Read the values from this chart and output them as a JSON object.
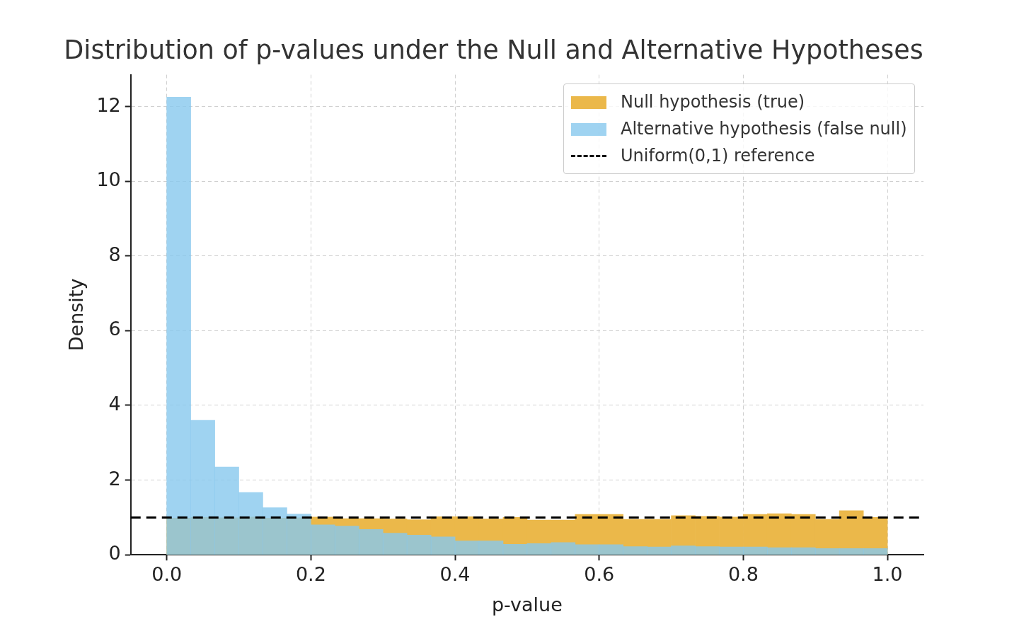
{
  "chart_data": {
    "type": "histogram",
    "title": "Distribution of p-values under the Null and Alternative Hypotheses",
    "xlabel": "p-value",
    "ylabel": "Density",
    "bins": [
      0,
      0.0333,
      0.0667,
      0.1,
      0.1333,
      0.1667,
      0.2,
      0.2333,
      0.2667,
      0.3,
      0.3333,
      0.3667,
      0.4,
      0.4333,
      0.4667,
      0.5,
      0.5333,
      0.5667,
      0.6,
      0.6333,
      0.6667,
      0.7,
      0.7333,
      0.7667,
      0.8,
      0.8333,
      0.8667,
      0.9,
      0.9333,
      0.9667,
      1
    ],
    "series": [
      {
        "name": "Null hypothesis (true)",
        "color": "#ebb84a",
        "values": [
          0.98,
          1.0,
          0.99,
          1.01,
          0.98,
          0.99,
          1.01,
          0.97,
          0.97,
          0.96,
          0.94,
          1.02,
          1.02,
          0.96,
          1.0,
          0.93,
          0.93,
          1.08,
          1.08,
          0.95,
          0.95,
          1.05,
          1.03,
          1.01,
          1.08,
          1.1,
          1.08,
          0.95,
          1.18,
          1.0
        ]
      },
      {
        "name": "Alternative hypothesis (false null)",
        "color": "#87c8ee",
        "values": [
          12.25,
          3.6,
          2.35,
          1.67,
          1.26,
          1.09,
          0.8,
          0.77,
          0.68,
          0.58,
          0.53,
          0.48,
          0.37,
          0.37,
          0.28,
          0.3,
          0.33,
          0.27,
          0.27,
          0.22,
          0.21,
          0.24,
          0.22,
          0.21,
          0.21,
          0.19,
          0.19,
          0.17,
          0.17,
          0.17
        ]
      }
    ],
    "ref_lines": [
      {
        "axis": "y",
        "value": 1,
        "label": "Uniform(0,1) reference",
        "color": "#000000",
        "line_style": "dashed"
      }
    ],
    "xlim": [
      -0.05,
      1.05
    ],
    "ylim": [
      0,
      12.85
    ],
    "xticks": [
      {
        "value": 0,
        "label": "0.0"
      },
      {
        "value": 0.2,
        "label": "0.2"
      },
      {
        "value": 0.4,
        "label": "0.4"
      },
      {
        "value": 0.6,
        "label": "0.6"
      },
      {
        "value": 0.8,
        "label": "0.8"
      },
      {
        "value": 1,
        "label": "1.0"
      }
    ],
    "yticks": [
      0,
      2,
      4,
      6,
      8,
      10,
      12
    ],
    "grid": true,
    "legend": "top right"
  }
}
